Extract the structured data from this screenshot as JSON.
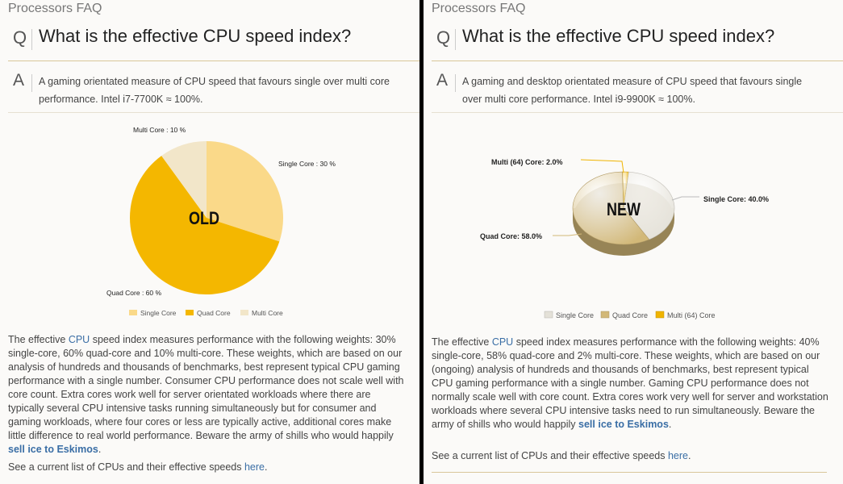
{
  "left": {
    "faq_title": "Processors FAQ",
    "q_letter": "Q",
    "question": "What is the effective CPU speed index?",
    "a_letter": "A",
    "answer": "A gaming orientated measure of CPU speed that favours single over multi core performance. Intel i7-7700K ≈ 100%.",
    "stamp": "OLD",
    "body_pre": "The effective ",
    "body_cpu_link": "CPU",
    "body_mid": " speed index measures performance with the following weights: 30% single-core, 60% quad-core and 10% multi-core. These weights, which are based on our analysis of hundreds and thousands of benchmarks, best represent typical CPU gaming performance with a single number. Consumer CPU performance does not scale well with core count. Extra cores work well for server orientated workloads where there are typically several CPU intensive tasks running simultaneously but for consumer and gaming workloads, where four cores or less are typically active, additional cores make little difference to real world performance. Beware the army of shills who would happily ",
    "body_link": "sell ice to Eskimos",
    "body_post": ".",
    "footer_pre": "See a current list of CPUs and their effective speeds ",
    "footer_link": "here",
    "footer_post": ".",
    "chart_data": {
      "type": "pie",
      "title": "",
      "slices": [
        {
          "name": "Single Core",
          "value": 30,
          "label": "Single Core : 30 %",
          "color": "#fad989"
        },
        {
          "name": "Quad Core",
          "value": 60,
          "label": "Quad Core : 60 %",
          "color": "#f4b700"
        },
        {
          "name": "Multi Core",
          "value": 10,
          "label": "Multi Core : 10 %",
          "color": "#f2e6c9"
        }
      ],
      "legend": [
        "Single Core",
        "Quad Core",
        "Multi Core"
      ],
      "legend_position": "bottom"
    }
  },
  "right": {
    "faq_title": "Processors FAQ",
    "q_letter": "Q",
    "question": "What is the effective CPU speed index?",
    "a_letter": "A",
    "answer": "A gaming and desktop orientated measure of CPU speed that favours single over multi core performance. Intel i9-9900K ≈ 100%.",
    "stamp": "NEW",
    "body_pre": "The effective ",
    "body_cpu_link": "CPU",
    "body_mid": " speed index measures performance with the following weights: 40% single-core, 58% quad-core and 2% multi-core. These weights, which are based on our (ongoing) analysis of hundreds and thousands of benchmarks, best represent typical CPU gaming performance with a single number. Gaming CPU performance does not normally scale well with core count. Extra cores work very well for server and workstation workloads where several CPU intensive tasks need to run simultaneously. Beware the army of shills who would happily ",
    "body_link": "sell ice to Eskimos",
    "body_post": ".",
    "footer_pre": "See a current list of CPUs and their effective speeds ",
    "footer_link": "here",
    "footer_post": ".",
    "chart_data": {
      "type": "pie",
      "title": "",
      "slices": [
        {
          "name": "Single Core",
          "value": 40.0,
          "label": "Single Core: 40.0%",
          "color": "#e4e1d8"
        },
        {
          "name": "Quad Core",
          "value": 58.0,
          "label": "Quad Core: 58.0%",
          "color": "#d2b878"
        },
        {
          "name": "Multi (64) Core",
          "value": 2.0,
          "label": "Multi (64) Core: 2.0%",
          "color": "#f0b400"
        }
      ],
      "legend": [
        "Single Core",
        "Quad Core",
        "Multi (64) Core"
      ],
      "legend_position": "bottom"
    }
  }
}
